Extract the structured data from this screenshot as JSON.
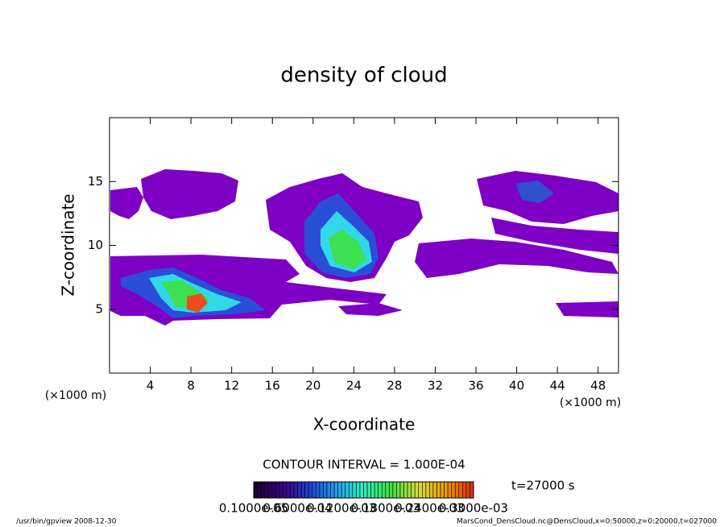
{
  "chart_data": {
    "type": "contour",
    "title": "density of cloud",
    "xlabel": "X-coordinate",
    "ylabel": "Z-coordinate",
    "xunit": "(×1000 m)",
    "xlim": [
      0,
      50
    ],
    "ylim": [
      0,
      20
    ],
    "xticks": [
      4,
      8,
      12,
      16,
      20,
      24,
      28,
      32,
      36,
      40,
      44,
      48
    ],
    "yticks": [
      5,
      10,
      15
    ],
    "contour_interval": "CONTOUR INTERVAL = 1.000E-04",
    "time_label": "t=27000 s",
    "colorbar_labels": [
      "0.1000e-05",
      "0.6000e-04",
      "0.1200e-03",
      "0.1800e-03",
      "0.2400e-03",
      "0.3000e-03"
    ],
    "colorbar_colors": [
      "#1a0030",
      "#3a0080",
      "#2040d0",
      "#20a0f0",
      "#30f0c0",
      "#40e040",
      "#d0e040",
      "#f0a000",
      "#e03010"
    ],
    "footer_left": "/usr/bin/gpview  2008-12-30",
    "footer_right": "MarsCond_DensCloud.nc@DensCloud,x=0:50000,z=0:20000,t=027000"
  }
}
